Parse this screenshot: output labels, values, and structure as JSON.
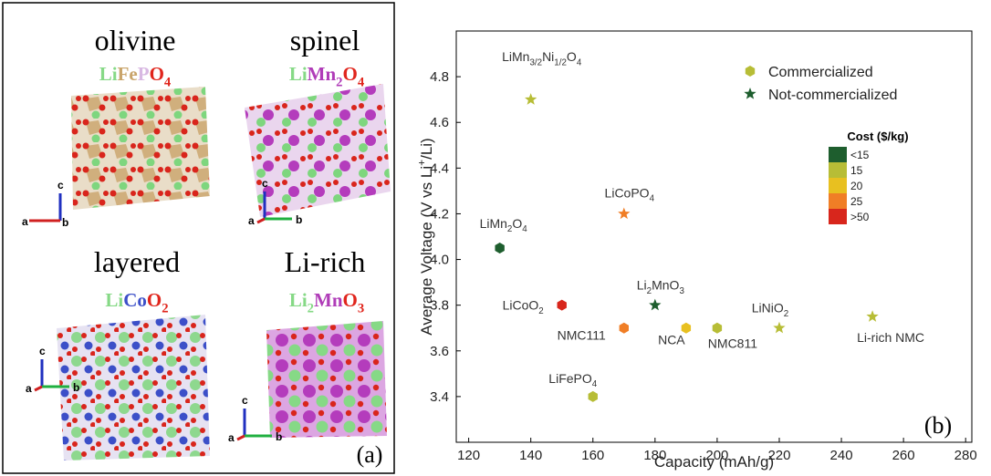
{
  "panel_a": {
    "label": "(a)",
    "structures": [
      {
        "name": "olivine",
        "formula": [
          {
            "text": "Li",
            "color": "#86d986"
          },
          {
            "text": "Fe",
            "color": "#c9a46a"
          },
          {
            "text": "P",
            "color": "#d8b8e2"
          },
          {
            "text": "O",
            "color": "#e0251c"
          },
          {
            "sub": "4",
            "color": "#e0251c"
          }
        ],
        "axes": [
          "a",
          "b",
          "c"
        ]
      },
      {
        "name": "spinel",
        "formula": [
          {
            "text": "Li",
            "color": "#86d986"
          },
          {
            "text": "Mn",
            "color": "#b03cb8"
          },
          {
            "sub": "2",
            "color": "#b03cb8"
          },
          {
            "text": "O",
            "color": "#e0251c"
          },
          {
            "sub": "4",
            "color": "#e0251c"
          }
        ],
        "axes": [
          "a",
          "b",
          "c"
        ]
      },
      {
        "name": "layered",
        "formula": [
          {
            "text": "Li",
            "color": "#86d986"
          },
          {
            "text": "Co",
            "color": "#3c4fc8"
          },
          {
            "text": "O",
            "color": "#e0251c"
          },
          {
            "sub": "2",
            "color": "#e0251c"
          }
        ],
        "axes": [
          "a",
          "b",
          "c"
        ]
      },
      {
        "name": "Li-rich",
        "formula": [
          {
            "text": "Li",
            "color": "#86d986"
          },
          {
            "sub": "2",
            "color": "#86d986"
          },
          {
            "text": "Mn",
            "color": "#b03cb8"
          },
          {
            "text": "O",
            "color": "#e0251c"
          },
          {
            "sub": "3",
            "color": "#e0251c"
          }
        ],
        "axes": [
          "a",
          "b",
          "c"
        ]
      }
    ]
  },
  "chart_data": {
    "type": "scatter",
    "xlabel": "Capacity (mAh/g)",
    "ylabel": [
      "Average Voltage (V vs Li",
      {
        "sup": "+"
      },
      "/Li)"
    ],
    "label": "(b)",
    "xlim": [
      116,
      282
    ],
    "xticks": [
      120,
      140,
      160,
      180,
      200,
      220,
      240,
      260,
      280
    ],
    "ylim": [
      3.2,
      5.0
    ],
    "yticks": [
      3.4,
      3.6,
      3.8,
      {
        "value": 4,
        "label": "4.0"
      },
      4.2,
      4.4,
      4.6,
      4.8
    ],
    "series": [
      {
        "name": "Commercialized",
        "marker": "hexagon",
        "color": "#b7bd36",
        "x": [
          130,
          150,
          170,
          190,
          200,
          160
        ],
        "values": [
          4.05,
          3.8,
          3.7,
          3.7,
          3.7,
          3.4
        ],
        "colors": [
          "#1e5e2e",
          "#d8261c",
          "#f07e26",
          "#e8c020",
          "#b7bd36",
          "#b7bd36"
        ],
        "labels": [
          [
            "LiMn",
            {
              "sub": "2"
            },
            "O",
            {
              "sub": "4"
            }
          ],
          [
            "LiCoO",
            {
              "sub": "2"
            }
          ],
          [
            "NMC111"
          ],
          [
            "NCA"
          ],
          [
            "NMC811"
          ],
          [
            "LiFePO",
            {
              "sub": "4"
            }
          ]
        ]
      },
      {
        "name": "Not-commercialized",
        "marker": "star",
        "color": "#1e5e2e",
        "x": [
          140,
          170,
          180,
          220,
          250
        ],
        "values": [
          4.7,
          4.2,
          3.8,
          3.7,
          3.75
        ],
        "colors": [
          "#b7bd36",
          "#f07e26",
          "#1e5e2e",
          "#b7bd36",
          "#b7bd36"
        ],
        "labels": [
          [
            "LiMn",
            {
              "sub": "3/2"
            },
            "Ni",
            {
              "sub": "1/2"
            },
            "O",
            {
              "sub": "4"
            }
          ],
          [
            "LiCoPO",
            {
              "sub": "4"
            }
          ],
          [
            "Li",
            {
              "sub": "2"
            },
            "MnO",
            {
              "sub": "3"
            }
          ],
          [
            "LiNiO",
            {
              "sub": "2"
            }
          ],
          [
            "Li-rich NMC"
          ]
        ]
      }
    ],
    "cost_legend": {
      "title": "Cost ($/kg)",
      "entries": [
        "<15",
        "15",
        "20",
        "25",
        ">50"
      ],
      "colors": [
        "#1e5e2e",
        "#b7bd36",
        "#e8c020",
        "#f07e26",
        "#d8261c"
      ]
    }
  }
}
